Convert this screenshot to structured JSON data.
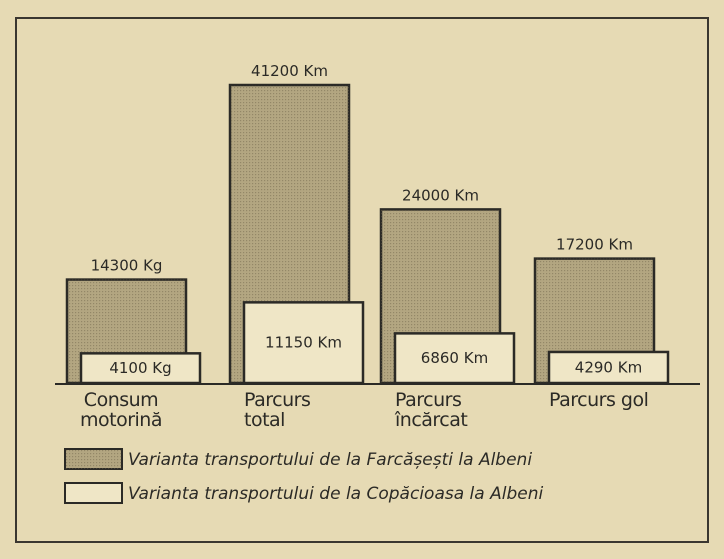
{
  "chart_data": {
    "type": "bar",
    "categories": [
      "Consum motorină",
      "Parcurs total",
      "Parcurs încărcat",
      "Parcurs gol"
    ],
    "series": [
      {
        "name": "Varianta transportului de la Farcășești la Albeni",
        "color": "#b3a681",
        "values": [
          14300,
          41200,
          24000,
          17200
        ],
        "value_labels": [
          "14300 Kg",
          "41200 Km",
          "24000 Km",
          "17200 Km"
        ]
      },
      {
        "name": "Varianta transportului de la Copăcioasa la Albeni",
        "color": "#efe6c6",
        "values": [
          4100,
          11150,
          6860,
          4290
        ],
        "value_labels": [
          "4100 Kg",
          "11150 Km",
          "6860 Km",
          "4290 Km"
        ]
      }
    ]
  }
}
